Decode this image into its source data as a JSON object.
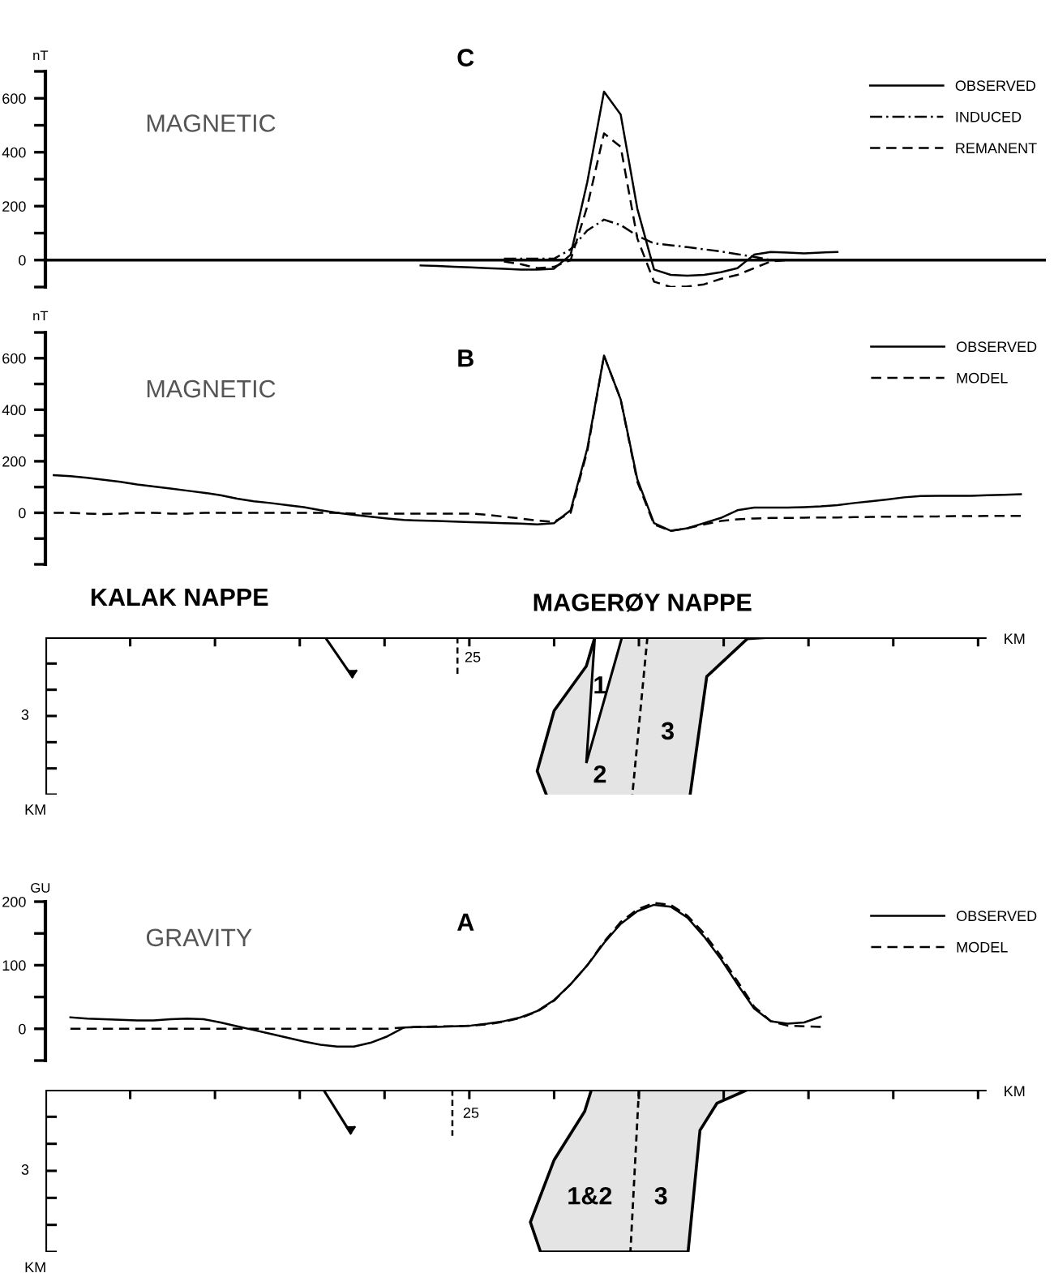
{
  "chart_data": [
    {
      "type": "line",
      "title": "C",
      "subtitle": "MAGNETIC",
      "ylabel": "nT",
      "categories": [
        null,
        null,
        null,
        null,
        null,
        null,
        null,
        null,
        null,
        null,
        null,
        null,
        null,
        null,
        null,
        null,
        null,
        null,
        null,
        null,
        null,
        null,
        null,
        null,
        null,
        null,
        null,
        null,
        null,
        null,
        null,
        null,
        null,
        null,
        null,
        null,
        null,
        null,
        null,
        null,
        null,
        null,
        null,
        null,
        null,
        null,
        null,
        null,
        null,
        null,
        null,
        null,
        null,
        null,
        null,
        null,
        null,
        null,
        null,
        null
      ],
      "series": [
        {
          "name": "OBSERVED",
          "color": "#000000",
          "line_style": "solid",
          "values": [
            null,
            null,
            null,
            null,
            null,
            null,
            null,
            null,
            null,
            null,
            null,
            null,
            null,
            null,
            null,
            null,
            null,
            null,
            null,
            null,
            null,
            null,
            -20,
            -22,
            -25,
            -27,
            -30,
            -32,
            -35,
            -35,
            -32,
            20,
            290,
            625,
            540,
            190,
            -35,
            -55,
            -58,
            -55,
            -45,
            -30,
            20,
            30,
            28,
            25,
            28,
            30,
            null,
            null,
            null,
            null,
            null,
            null,
            null,
            null,
            null,
            null,
            null,
            null
          ]
        },
        {
          "name": "INDUCED",
          "color": "#000000",
          "line_style": "dashdot",
          "values": [
            null,
            null,
            null,
            null,
            null,
            null,
            null,
            null,
            null,
            null,
            null,
            null,
            null,
            null,
            null,
            null,
            null,
            null,
            null,
            null,
            null,
            null,
            null,
            null,
            null,
            null,
            null,
            5,
            5,
            5,
            5,
            40,
            110,
            150,
            130,
            90,
            62,
            55,
            48,
            40,
            32,
            22,
            12,
            0,
            null,
            null,
            null,
            null,
            null,
            null,
            null,
            null,
            null,
            null,
            null,
            null,
            null,
            null,
            null,
            null
          ]
        },
        {
          "name": "REMANENT",
          "color": "#000000",
          "line_style": "dashed",
          "values": [
            null,
            null,
            null,
            null,
            null,
            null,
            null,
            null,
            null,
            null,
            null,
            null,
            null,
            null,
            null,
            null,
            null,
            null,
            null,
            null,
            null,
            null,
            null,
            null,
            null,
            null,
            null,
            -5,
            -15,
            -30,
            -25,
            0,
            200,
            470,
            420,
            80,
            -80,
            -100,
            -98,
            -90,
            -70,
            -55,
            -30,
            -5,
            0,
            null,
            null,
            null,
            null,
            null,
            null,
            null,
            null,
            null,
            null,
            null,
            null,
            null,
            null,
            null
          ]
        }
      ],
      "ref_lines": [
        {
          "axis": "y",
          "value": 0,
          "color": "#000000",
          "line_style": "solid"
        }
      ],
      "ylim": [
        -100,
        700
      ],
      "yticks": [
        {
          "value": -100,
          "label": null
        },
        0,
        {
          "value": 100,
          "label": null
        },
        200,
        {
          "value": 300,
          "label": null
        },
        400,
        {
          "value": 500,
          "label": null
        },
        600,
        {
          "value": 700,
          "label": null
        }
      ],
      "tick_labels": "y",
      "legend": "top right",
      "grid": false
    },
    {
      "type": "line",
      "title": "B",
      "subtitle": "MAGNETIC",
      "ylabel": "nT",
      "categories": [
        null,
        null,
        null,
        null,
        null,
        null,
        null,
        null,
        null,
        null,
        null,
        null,
        null,
        null,
        null,
        null,
        null,
        null,
        null,
        null,
        null,
        null,
        null,
        null,
        null,
        null,
        null,
        null,
        null,
        null,
        null,
        null,
        null,
        null,
        null,
        null,
        null,
        null,
        null,
        null,
        null,
        null,
        null,
        null,
        null,
        null,
        null,
        null,
        null,
        null,
        null,
        null,
        null,
        null,
        null,
        null,
        null,
        null,
        null,
        null
      ],
      "series": [
        {
          "name": "OBSERVED",
          "color": "#000000",
          "line_style": "solid",
          "values": [
            146,
            142,
            136,
            128,
            120,
            110,
            102,
            94,
            86,
            78,
            68,
            55,
            45,
            38,
            30,
            22,
            10,
            0,
            -8,
            -15,
            -22,
            -28,
            -30,
            -32,
            -34,
            -36,
            -38,
            -40,
            -42,
            -45,
            -40,
            10,
            250,
            610,
            440,
            130,
            -40,
            -70,
            -60,
            -40,
            -20,
            10,
            20,
            20,
            20,
            22,
            25,
            30,
            38,
            45,
            52,
            60,
            65,
            66,
            66,
            66,
            68,
            70,
            72,
            null
          ]
        },
        {
          "name": "MODEL",
          "color": "#000000",
          "line_style": "dashed",
          "values": [
            0,
            0,
            -3,
            -5,
            -3,
            0,
            0,
            -3,
            -3,
            0,
            0,
            0,
            0,
            0,
            0,
            0,
            0,
            0,
            -3,
            -3,
            -3,
            -3,
            -3,
            -3,
            -3,
            -3,
            -8,
            -15,
            -22,
            -30,
            -35,
            0,
            240,
            610,
            440,
            120,
            -45,
            -70,
            -60,
            -45,
            -32,
            -25,
            -22,
            -20,
            -20,
            -19,
            -18,
            -18,
            -17,
            -16,
            -15,
            -15,
            -14,
            -14,
            -13,
            -13,
            -12,
            -12,
            -12,
            null
          ]
        }
      ],
      "ylim": [
        -200,
        700
      ],
      "yticks": [
        {
          "value": -200,
          "label": null
        },
        {
          "value": -100,
          "label": null
        },
        0,
        {
          "value": 100,
          "label": null
        },
        200,
        {
          "value": 300,
          "label": null
        },
        400,
        {
          "value": 500,
          "label": null
        },
        600,
        {
          "value": 700,
          "label": null
        }
      ],
      "tick_labels": "y",
      "legend": "top right",
      "grid": false
    },
    {
      "type": "other",
      "xlabel": "KM",
      "ylabel": "KM",
      "annotations": [
        "KALAK NAPPE",
        "MAGERØY NAPPE",
        "1",
        "2",
        "3",
        "25",
        "3"
      ]
    },
    {
      "type": "line",
      "title": "A",
      "subtitle": "GRAVITY",
      "ylabel": "GU",
      "categories": [
        null,
        null,
        null,
        null,
        null,
        null,
        null,
        null,
        null,
        null,
        null,
        null,
        null,
        null,
        null,
        null,
        null,
        null,
        null,
        null,
        null,
        null,
        null,
        null,
        null,
        null,
        null,
        null,
        null,
        null,
        null,
        null,
        null,
        null,
        null,
        null,
        null,
        null,
        null,
        null,
        null,
        null,
        null,
        null,
        null,
        null,
        null,
        null,
        null,
        null,
        null,
        null,
        null,
        null,
        null,
        null,
        null,
        null,
        null,
        null
      ],
      "series": [
        {
          "name": "OBSERVED",
          "color": "#000000",
          "line_style": "solid",
          "values": [
            null,
            18,
            16,
            15,
            14,
            13,
            13,
            15,
            16,
            15,
            10,
            4,
            -2,
            -8,
            -14,
            -20,
            -25,
            -28,
            -28,
            -22,
            -12,
            2,
            3,
            3,
            4,
            5,
            8,
            12,
            18,
            28,
            45,
            70,
            100,
            135,
            165,
            185,
            195,
            192,
            175,
            145,
            110,
            70,
            32,
            12,
            8,
            10,
            19,
            null,
            null,
            null,
            null,
            null,
            null,
            null,
            null,
            null,
            null,
            null,
            null,
            null
          ]
        },
        {
          "name": "MODEL",
          "color": "#000000",
          "line_style": "dashed",
          "values": [
            null,
            0,
            0,
            0,
            0,
            0,
            0,
            0,
            0,
            0,
            0,
            0,
            0,
            0,
            0,
            0,
            0,
            0,
            0,
            0,
            0,
            2,
            3,
            4,
            4,
            5,
            7,
            11,
            17,
            27,
            44,
            70,
            100,
            137,
            168,
            188,
            198,
            195,
            178,
            150,
            115,
            75,
            35,
            12,
            5,
            4,
            3,
            null,
            null,
            null,
            null,
            null,
            null,
            null,
            null,
            null,
            null,
            null,
            null,
            null
          ]
        }
      ],
      "ylim": [
        -50,
        200
      ],
      "yticks": [
        {
          "value": -50,
          "label": null
        },
        0,
        {
          "value": 50,
          "label": null
        },
        100,
        {
          "value": 150,
          "label": null
        },
        200
      ],
      "tick_labels": "y",
      "legend": "top right",
      "grid": false
    },
    {
      "type": "other",
      "xlabel": "KM",
      "ylabel": "KM",
      "annotations": [
        "1&2",
        "3",
        "25",
        "3"
      ]
    }
  ]
}
